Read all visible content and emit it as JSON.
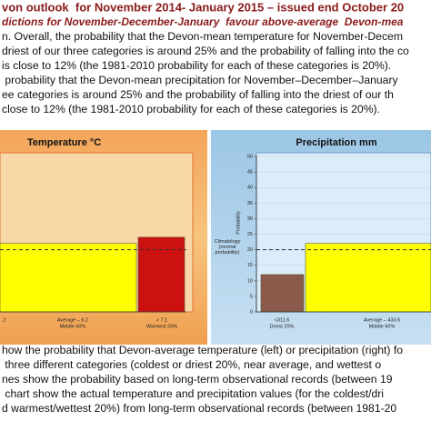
{
  "title": "von outlook  for November 2014- January 2015 – issued end October 20",
  "subtitle": "dictions for November-December-January  favour above-average  Devon-mea",
  "paragraph": [
    "n. Overall, the probability that the Devon-mean temperature for November-Decem",
    "driest of our three categories is around 25% and the probability of falling into the co",
    "is close to 12% (the 1981-2010 probability for each of these categories is 20%).",
    " probability that the Devon-mean precipitation for November–December–January",
    "ee categories is around 25% and the probability of falling into the driest of our th",
    "close to 12% (the 1981-2010 probability for each of these categories is 20%)."
  ],
  "charts": [
    {
      "type": "bar",
      "title": "Temperature °C",
      "ylim": [
        0,
        50
      ],
      "climatology": 20,
      "edge_label": ".2",
      "categories": [
        {
          "threshold": "Average – 6.2",
          "name": "Middle 60%"
        },
        {
          "threshold": "> 7.1",
          "name": "Warmest 20%"
        }
      ],
      "values": [
        22,
        24
      ],
      "colors": [
        "#ffff00",
        "#cc1111"
      ]
    },
    {
      "type": "bar",
      "title": "Precipitation mm",
      "ylabel": "Probability",
      "ylim": [
        0,
        50
      ],
      "yticks": [
        0,
        5,
        10,
        15,
        20,
        25,
        30,
        35,
        40,
        45,
        50
      ],
      "climatology": 20,
      "climatology_label": [
        "Climatology",
        "(normal",
        "probability)"
      ],
      "categories": [
        {
          "threshold": "<311.6",
          "name": "Driest 20%"
        },
        {
          "threshold": "Average – 433.6",
          "name": "Middle 60%"
        }
      ],
      "values": [
        12,
        22
      ],
      "colors": [
        "#8b5a4a",
        "#ffff00"
      ]
    }
  ],
  "caption": [
    "how the probability that Devon-average temperature (left) or precipitation (right) fo",
    " three different categories (coldest or driest 20%, near average, and wettest o",
    "nes show the probability based on long-term observational records (between 19",
    " chart show the actual temperature and precipitation values (for the coldest/dri",
    "d warmest/wettest 20%) from long-term observational records (between 1981-20"
  ]
}
